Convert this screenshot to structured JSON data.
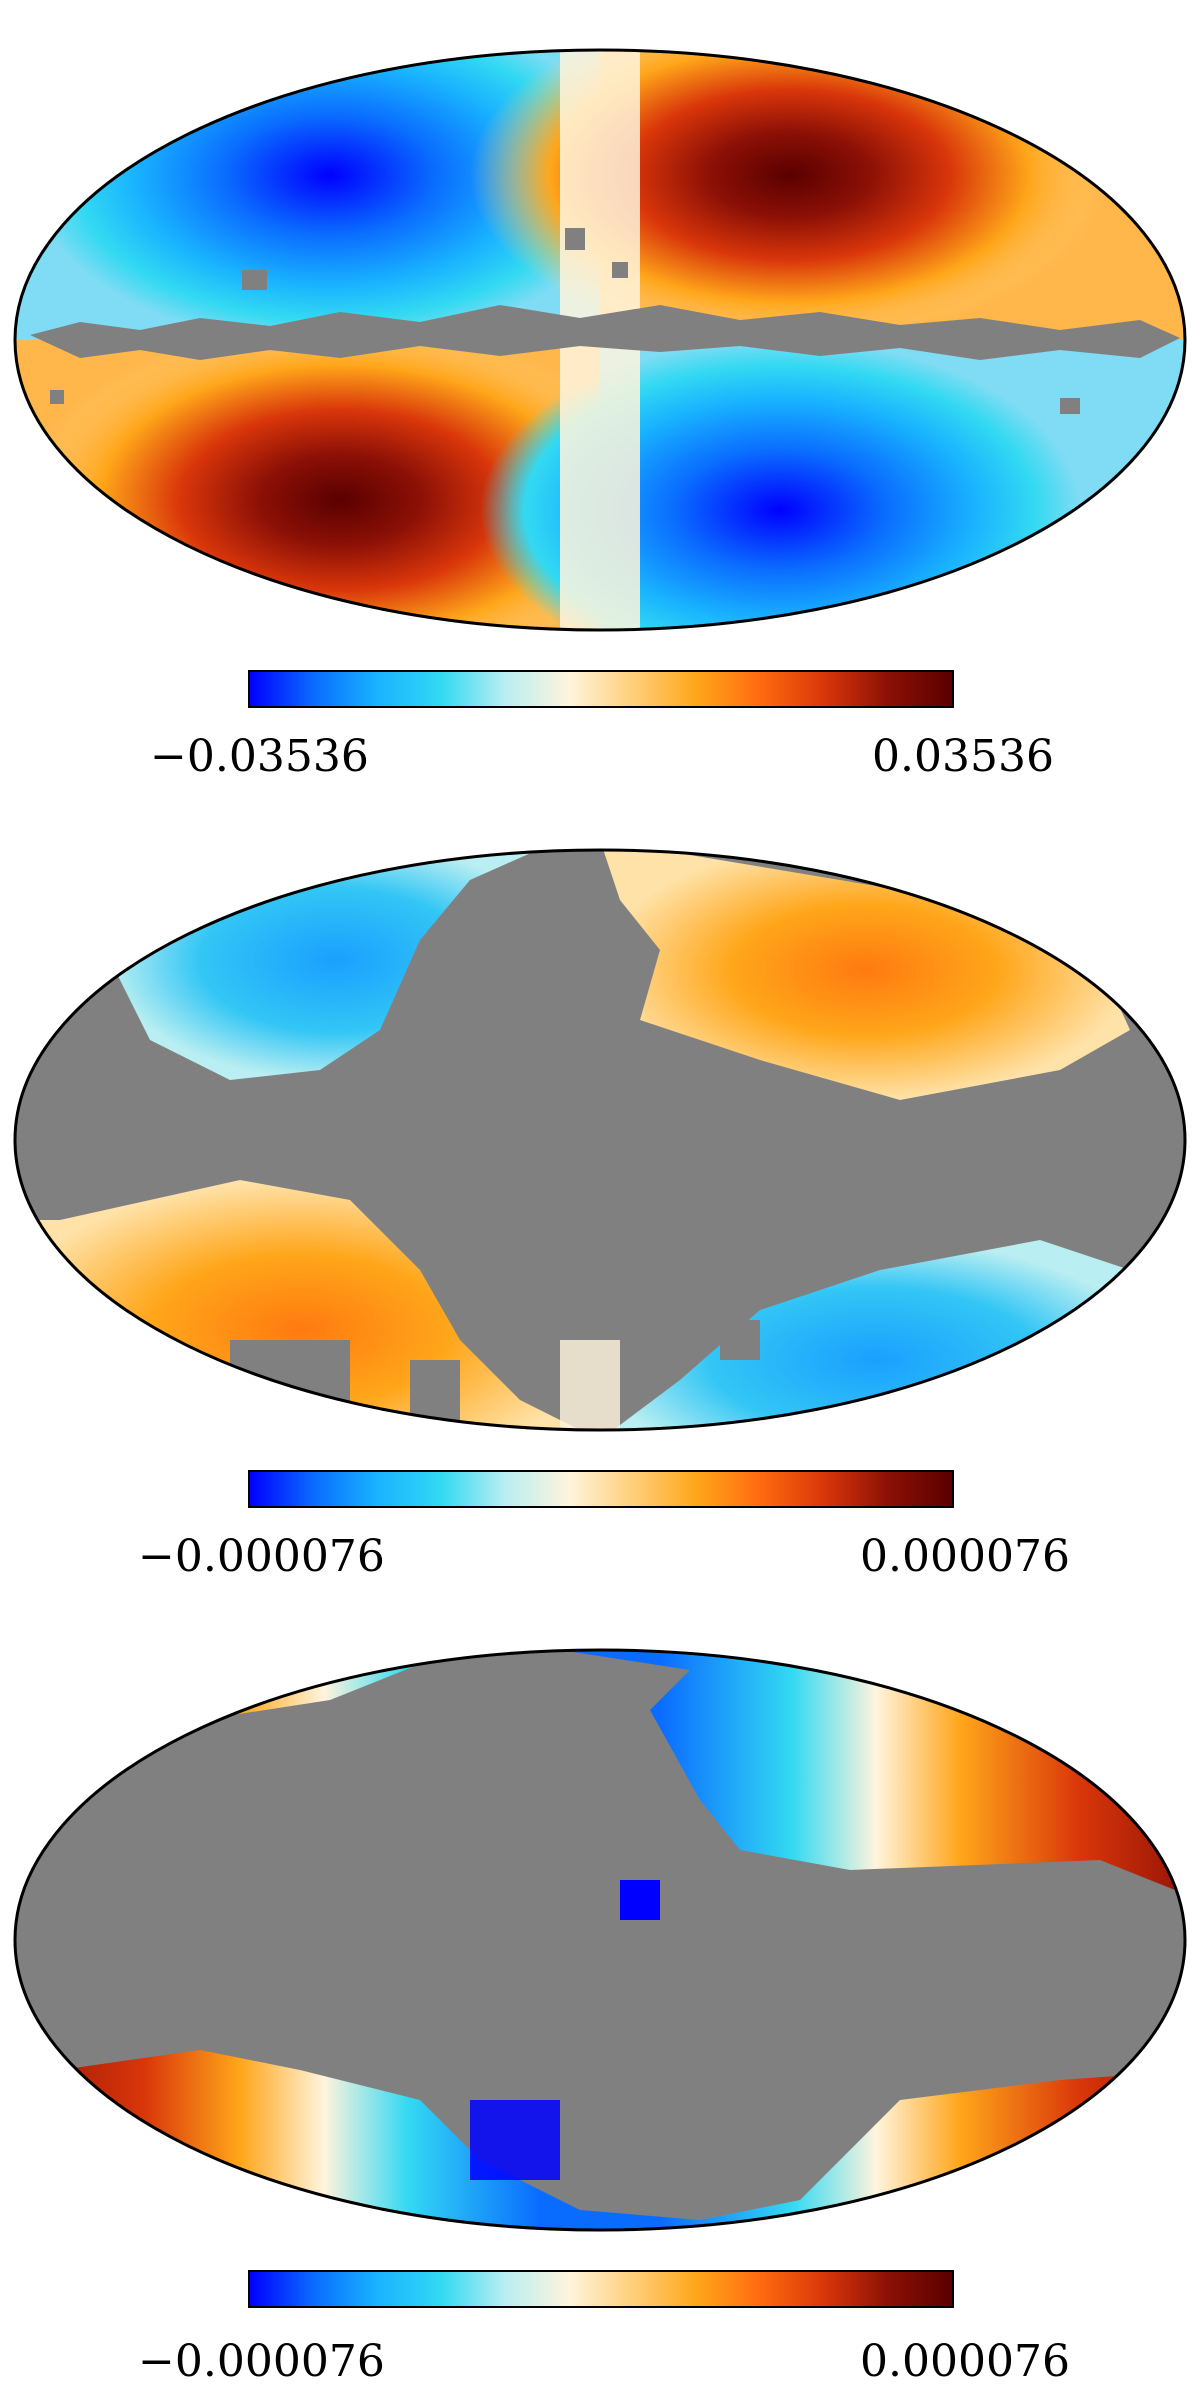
{
  "colormap": {
    "name": "planck",
    "stops": [
      "#0000ff",
      "#0a6cff",
      "#19b3ff",
      "#33d9f2",
      "#b9eef2",
      "#fff4dd",
      "#ffcf7a",
      "#ffa61a",
      "#ff6a10",
      "#d9360a",
      "#8c1006",
      "#5a0000"
    ],
    "mask_color": "#808080"
  },
  "panels": [
    {
      "id": "panel-1",
      "colorbar_min_label": "−0.03536",
      "colorbar_max_label": "0.03536"
    },
    {
      "id": "panel-2",
      "colorbar_min_label": "−0.000076",
      "colorbar_max_label": "0.000076"
    },
    {
      "id": "panel-3",
      "colorbar_min_label": "−0.000076",
      "colorbar_max_label": "0.000076"
    }
  ]
}
